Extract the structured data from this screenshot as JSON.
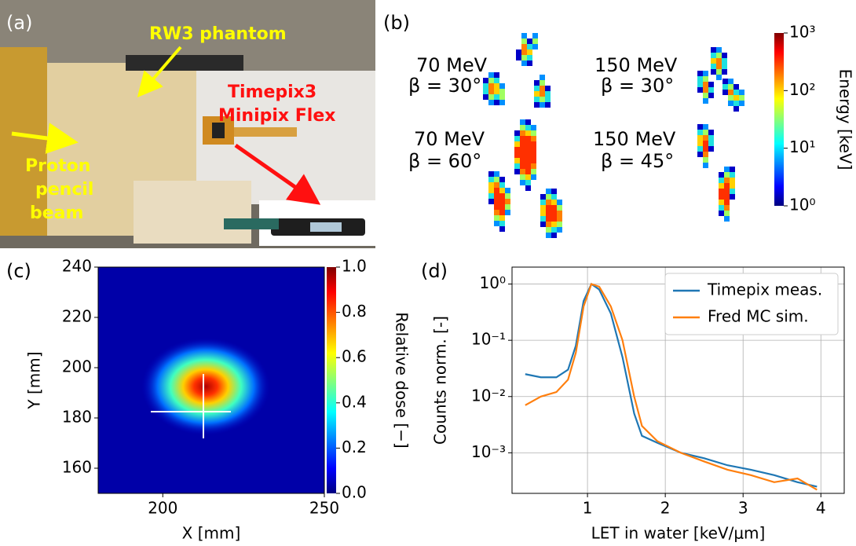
{
  "panel_a": {
    "label": "(a)",
    "annotations": {
      "phantom": "RW3 phantom",
      "detector": [
        "Timepix3",
        "Minipix Flex"
      ],
      "beam": [
        "Proton",
        "pencil",
        "beam"
      ]
    }
  },
  "panel_b": {
    "label": "(b)",
    "clusters": [
      {
        "energy": "70 MeV",
        "angle": "β = 30°"
      },
      {
        "energy": "150 MeV",
        "angle": "β = 30°"
      },
      {
        "energy": "70 MeV",
        "angle": "β = 60°"
      },
      {
        "energy": "150 MeV",
        "angle": "β = 45°"
      }
    ],
    "colorbar": {
      "label": "Energy [keV]",
      "log": true,
      "lim": [
        1,
        1000
      ],
      "ticks": [
        {
          "value": 1,
          "label": "10⁰"
        },
        {
          "value": 10,
          "label": "10¹"
        },
        {
          "value": 100,
          "label": "10²"
        },
        {
          "value": 1000,
          "label": "10³"
        }
      ]
    }
  },
  "chart_data": [
    {
      "type": "heatmap",
      "panel_label": "(c)",
      "xlabel": "X [mm]",
      "ylabel": "Y [mm]",
      "xlim": [
        180,
        250
      ],
      "ylim": [
        150,
        240
      ],
      "xticks": [
        200,
        250
      ],
      "yticks": [
        160,
        180,
        200,
        220,
        240
      ],
      "colorbar": {
        "label": "Relative dose [−]",
        "lim": [
          0,
          1
        ],
        "ticks": [
          {
            "value": 0,
            "label": "0.0"
          },
          0.2,
          0.4,
          0.6,
          0.8,
          {
            "value": 1,
            "label": "1.0"
          }
        ]
      }
    },
    {
      "type": "line",
      "panel_label": "(d)",
      "xlabel": "LET in water [keV/μm]",
      "ylabel": "Counts norm. [-]",
      "log_y": true,
      "grid": true,
      "legend": "upper right",
      "xlim": [
        0.03,
        4.3
      ],
      "ylim": [
        0.00019,
        2
      ],
      "xticks": [
        1,
        2,
        3,
        4
      ],
      "yticks": [
        {
          "value": 0.001,
          "label": "10⁻³"
        },
        {
          "value": 0.01,
          "label": "10⁻²"
        },
        {
          "value": 0.1,
          "label": "10⁻¹"
        },
        {
          "value": 1,
          "label": "10⁰"
        }
      ],
      "series": [
        {
          "name": "Timepix meas.",
          "color": "#1f77b4",
          "x": [
            0.2,
            0.4,
            0.6,
            0.75,
            0.85,
            0.95,
            1.05,
            1.15,
            1.3,
            1.45,
            1.6,
            1.7,
            1.9,
            2.2,
            2.5,
            2.8,
            3.1,
            3.4,
            3.7,
            3.95
          ],
          "values": [
            0.025,
            0.022,
            0.022,
            0.03,
            0.08,
            0.5,
            1.0,
            0.8,
            0.3,
            0.05,
            0.005,
            0.002,
            0.0015,
            0.001,
            0.0008,
            0.0006,
            0.0005,
            0.0004,
            0.0003,
            0.00025
          ]
        },
        {
          "name": "Fred MC sim.",
          "color": "#ff7f0e",
          "x": [
            0.2,
            0.4,
            0.6,
            0.75,
            0.85,
            0.95,
            1.05,
            1.15,
            1.3,
            1.45,
            1.6,
            1.7,
            1.9,
            2.2,
            2.5,
            2.8,
            3.1,
            3.4,
            3.7,
            3.95
          ],
          "values": [
            0.007,
            0.01,
            0.012,
            0.02,
            0.06,
            0.4,
            1.0,
            0.9,
            0.4,
            0.1,
            0.01,
            0.003,
            0.0016,
            0.001,
            0.0007,
            0.0005,
            0.0004,
            0.0003,
            0.00035,
            0.00022
          ]
        }
      ]
    }
  ]
}
